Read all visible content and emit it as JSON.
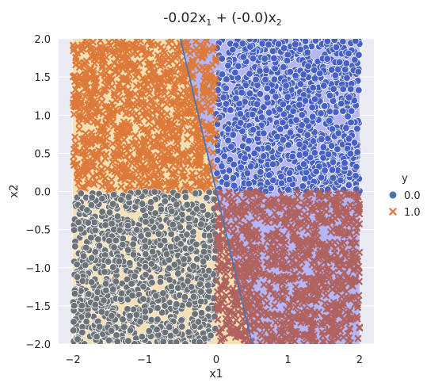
{
  "chart_data": {
    "type": "scatter",
    "title_main": "-0.02x",
    "title_sub1": "1",
    "title_mid": " + (-0.0)x",
    "title_sub2": "2",
    "xlabel": "x1",
    "ylabel": "x2",
    "xlim": [
      -2.2,
      2.2
    ],
    "ylim": [
      -2.0,
      2.0
    ],
    "xticks": [
      "−2",
      "−1",
      "0",
      "1",
      "2"
    ],
    "xtick_values": [
      -2,
      -1,
      0,
      1,
      2
    ],
    "yticks": [
      "−2.0",
      "−1.5",
      "−1.0",
      "−0.5",
      "0.0",
      "0.5",
      "1.0",
      "1.5",
      "2.0"
    ],
    "ytick_values": [
      -2.0,
      -1.5,
      -1.0,
      -0.5,
      0.0,
      0.5,
      1.0,
      1.5,
      2.0
    ],
    "grid": true,
    "legend": {
      "title": "y",
      "placement": "right",
      "entries": [
        {
          "label": "0.0",
          "marker": "circle",
          "color": "#4c72b0"
        },
        {
          "label": "1.0",
          "marker": "x",
          "color": "#dd8452"
        }
      ]
    },
    "decision_boundary": {
      "points": [
        [
          -0.5,
          2.0
        ],
        [
          0.5,
          -2.0
        ]
      ],
      "color": "#4c72b0"
    },
    "background_regions": {
      "left_color": "#f5dfb5",
      "right_color": "#b5b6f7"
    },
    "point_groups": [
      {
        "name": "",
        "quadrant": "x>0, y>0",
        "x_range": [
          0,
          2
        ],
        "y_range": [
          0,
          2
        ],
        "marker": "circle",
        "fill": "#4660c7",
        "n": 1100
      },
      {
        "name": "",
        "quadrant": "x<0, y>0",
        "x_range": [
          -2,
          0
        ],
        "y_range": [
          0,
          2
        ],
        "marker": "x",
        "fill": "#dd7a3a",
        "n": 1100
      },
      {
        "name": "",
        "quadrant": "x<0, y<0",
        "x_range": [
          -2,
          0
        ],
        "y_range": [
          -2,
          0
        ],
        "marker": "circle",
        "fill": "#6c7277",
        "n": 1100
      },
      {
        "name": "",
        "quadrant": "x>0, y<0",
        "x_range": [
          0,
          2
        ],
        "y_range": [
          -2,
          0
        ],
        "marker": "x",
        "fill": "#b0625f",
        "n": 1100
      }
    ],
    "colors": {
      "axes_bg": "#eaeaf2",
      "grid": "#ffffff"
    }
  }
}
